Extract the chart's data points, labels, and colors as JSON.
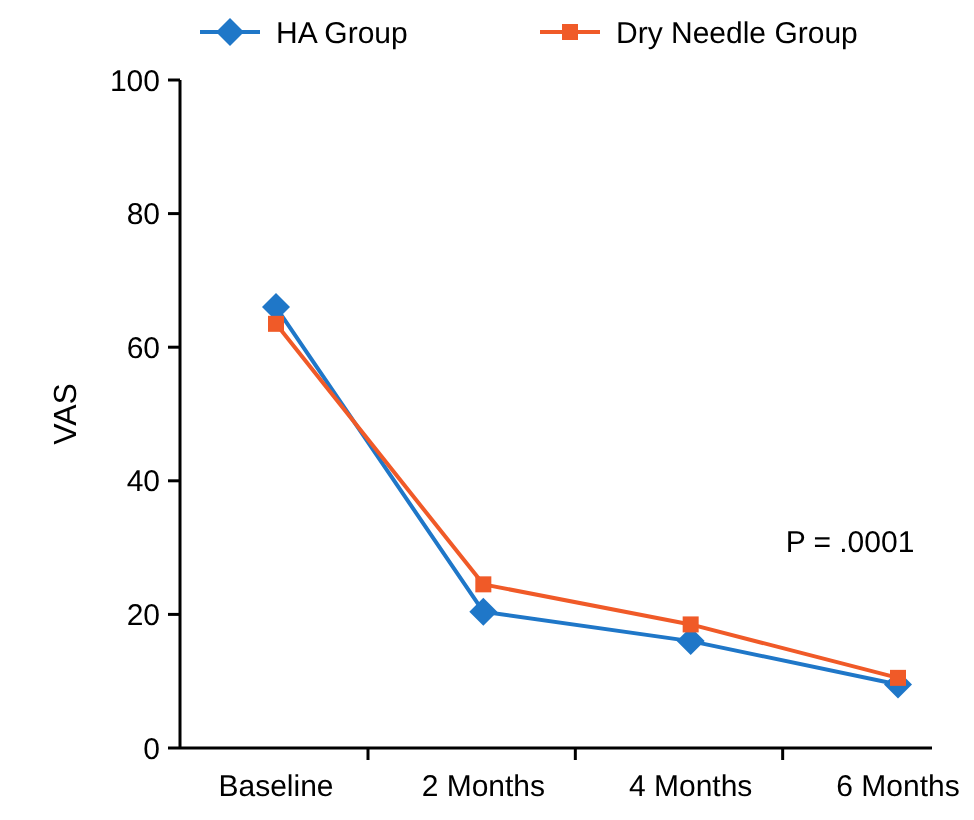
{
  "chart_data": {
    "type": "line",
    "ylabel": "VAS",
    "categories": [
      "Baseline",
      "2 Months",
      "4 Months",
      "6 Months"
    ],
    "series": [
      {
        "name": "HA Group",
        "color": "#1f77c8",
        "values": [
          66,
          20.4,
          16,
          9.5
        ],
        "marker": "diamond"
      },
      {
        "name": "Dry Needle Group",
        "color": "#f05a28",
        "values": [
          63.5,
          24.5,
          18.5,
          10.5
        ],
        "marker": "square"
      }
    ],
    "ylim": [
      0,
      100
    ],
    "yticks": [
      0,
      20,
      40,
      60,
      80,
      100
    ],
    "legend": "top",
    "grid": false,
    "annotations": [
      {
        "text": "P = .0001"
      }
    ]
  }
}
